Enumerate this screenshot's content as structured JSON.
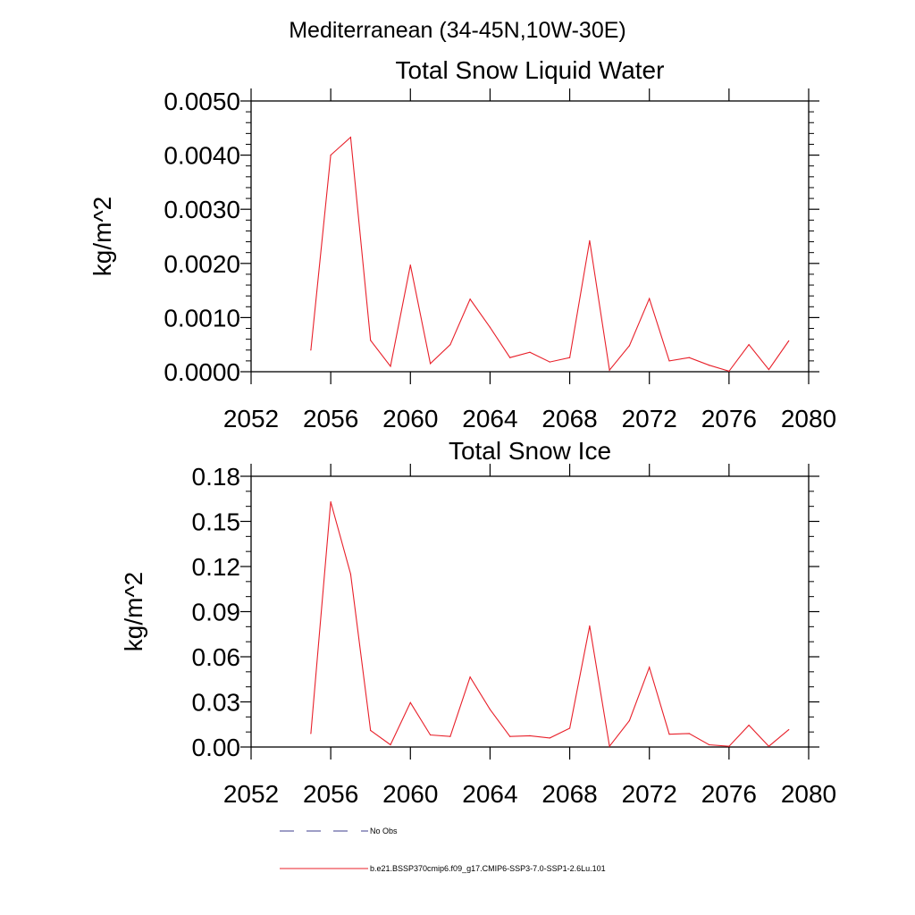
{
  "figure": {
    "title": "Mediterranean (34-45N,10W-30E)"
  },
  "legend": {
    "items": [
      {
        "label": "No Obs",
        "color": "#3c3c8c",
        "dash": "dashed"
      },
      {
        "label": "b.e21.BSSP370cmip6.f09_g17.CMIP6-SSP3-7.0-SSP1-2.6Lu.101",
        "color": "#e8202a",
        "dash": "solid"
      }
    ]
  },
  "chart_data": [
    {
      "type": "line",
      "title": "Total Snow Liquid Water",
      "xlabel": "",
      "ylabel": "kg/m^2",
      "xlim": [
        2052,
        2080
      ],
      "ylim": [
        0,
        0.005
      ],
      "xticks": [
        "2052",
        "2056",
        "2060",
        "2064",
        "2068",
        "2072",
        "2076",
        "2080"
      ],
      "yticks": [
        "0.0000",
        "0.0010",
        "0.0020",
        "0.0030",
        "0.0040",
        "0.0050"
      ],
      "series": [
        {
          "name": "b.e21.BSSP370cmip6.f09_g17.CMIP6-SSP3-7.0-SSP1-2.6Lu.101",
          "color": "#e8202a",
          "x": [
            2055,
            2056,
            2057,
            2058,
            2059,
            2060,
            2061,
            2062,
            2063,
            2064,
            2065,
            2066,
            2067,
            2068,
            2069,
            2070,
            2071,
            2072,
            2073,
            2074,
            2075,
            2076,
            2077,
            2078,
            2079
          ],
          "y": [
            0.0004,
            0.004,
            0.00433,
            0.00058,
            0.0001,
            0.00197,
            0.00015,
            0.0005,
            0.00134,
            0.00082,
            0.00026,
            0.00036,
            0.00018,
            0.00026,
            0.00242,
            3e-05,
            0.00048,
            0.00135,
            0.0002,
            0.00026,
            0.00012,
            1e-05,
            0.0005,
            4e-05,
            0.00057
          ]
        }
      ]
    },
    {
      "type": "line",
      "title": "Total Snow Ice",
      "xlabel": "",
      "ylabel": "kg/m^2",
      "xlim": [
        2052,
        2080
      ],
      "ylim": [
        0,
        0.18
      ],
      "xticks": [
        "2052",
        "2056",
        "2060",
        "2064",
        "2068",
        "2072",
        "2076",
        "2080"
      ],
      "yticks": [
        "0.00",
        "0.03",
        "0.06",
        "0.09",
        "0.12",
        "0.15",
        "0.18"
      ],
      "series": [
        {
          "name": "b.e21.BSSP370cmip6.f09_g17.CMIP6-SSP3-7.0-SSP1-2.6Lu.101",
          "color": "#e8202a",
          "x": [
            2055,
            2056,
            2057,
            2058,
            2059,
            2060,
            2061,
            2062,
            2063,
            2064,
            2065,
            2066,
            2067,
            2068,
            2069,
            2070,
            2071,
            2072,
            2073,
            2074,
            2075,
            2076,
            2077,
            2078,
            2079
          ],
          "y": [
            0.009,
            0.163,
            0.115,
            0.011,
            0.0015,
            0.0295,
            0.008,
            0.007,
            0.0465,
            0.025,
            0.007,
            0.0075,
            0.006,
            0.0125,
            0.0805,
            0.0005,
            0.0175,
            0.053,
            0.0085,
            0.009,
            0.0015,
            0.0005,
            0.0145,
            0.0005,
            0.0115
          ]
        }
      ]
    }
  ]
}
